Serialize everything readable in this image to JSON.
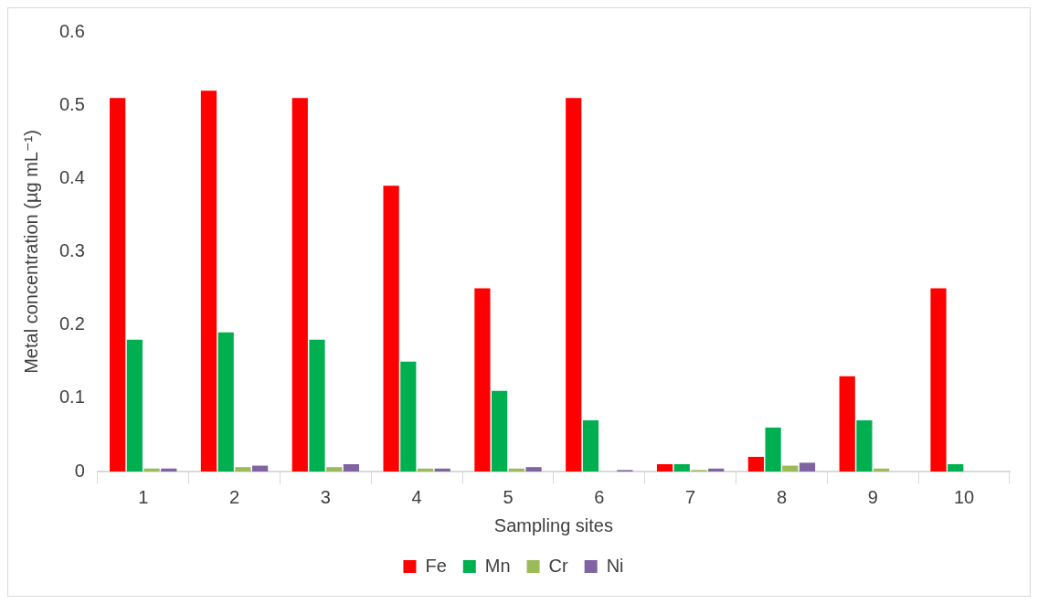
{
  "chart_data": {
    "type": "bar",
    "xlabel": "Sampling sites",
    "ylabel": "Metal concentration (µg mL⁻¹)",
    "categories": [
      "1",
      "2",
      "3",
      "4",
      "5",
      "6",
      "7",
      "8",
      "9",
      "10"
    ],
    "series": [
      {
        "name": "Fe",
        "color": "#ff0000",
        "values": [
          0.51,
          0.52,
          0.51,
          0.39,
          0.25,
          0.51,
          0.01,
          0.02,
          0.13,
          0.25
        ]
      },
      {
        "name": "Mn",
        "color": "#00b050",
        "values": [
          0.18,
          0.19,
          0.18,
          0.15,
          0.11,
          0.07,
          0.01,
          0.06,
          0.07,
          0.01
        ]
      },
      {
        "name": "Cr",
        "color": "#9bbb59",
        "values": [
          0.004,
          0.006,
          0.006,
          0.004,
          0.004,
          null,
          0.002,
          0.008,
          0.004,
          null
        ]
      },
      {
        "name": "Ni",
        "color": "#8064a2",
        "values": [
          0.004,
          0.008,
          0.01,
          0.004,
          0.006,
          0.002,
          0.004,
          0.012,
          null,
          null
        ]
      }
    ],
    "ylim": [
      0,
      0.6
    ],
    "yticks": [
      0,
      0.1,
      0.2,
      0.3,
      0.4,
      0.5,
      0.6
    ],
    "grid": false,
    "legend": "bottom"
  }
}
